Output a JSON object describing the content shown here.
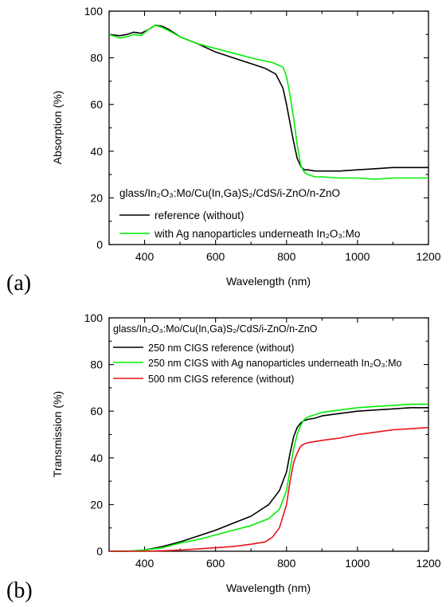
{
  "chart_data": [
    {
      "type": "line",
      "panel_label": "(a)",
      "xlabel": "Wavelength (nm)",
      "ylabel": "Absorption (%)",
      "xlim": [
        300,
        1200
      ],
      "ylim": [
        0,
        100
      ],
      "xticks": [
        "400",
        "600",
        "800",
        "1000",
        "1200"
      ],
      "yticks": [
        "0",
        "20",
        "40",
        "60",
        "80",
        "100"
      ],
      "legend_title": "glass/In₂O₃:Mo/Cu(In,Ga)S₂/CdS/i-ZnO/n-ZnO",
      "legend_position": "bottom-left",
      "series": [
        {
          "name": "reference (without)",
          "color": "#000000",
          "x": [
            300,
            330,
            350,
            370,
            390,
            410,
            430,
            450,
            470,
            500,
            550,
            600,
            650,
            700,
            740,
            770,
            790,
            800,
            810,
            820,
            830,
            840,
            850,
            860,
            880,
            900,
            950,
            1000,
            1050,
            1100,
            1150,
            1200
          ],
          "y": [
            90,
            89.5,
            90,
            91,
            90.5,
            92,
            94,
            93.5,
            92,
            89,
            86,
            82.5,
            80,
            77.5,
            75.5,
            73,
            67,
            60,
            52,
            44,
            37,
            33.5,
            32,
            32,
            31.5,
            31.5,
            31.5,
            32,
            32.5,
            33,
            33,
            33
          ]
        },
        {
          "name": "with Ag nanoparticles underneath In₂O₃:Mo",
          "color": "#00ee00",
          "x": [
            300,
            330,
            350,
            370,
            390,
            410,
            430,
            450,
            470,
            500,
            550,
            600,
            650,
            700,
            760,
            790,
            800,
            810,
            820,
            830,
            840,
            850,
            860,
            880,
            900,
            950,
            1000,
            1050,
            1100,
            1150,
            1200
          ],
          "y": [
            90,
            88.5,
            89,
            90,
            89.5,
            92,
            94,
            93,
            91.5,
            89,
            86,
            84,
            82,
            80,
            78,
            76,
            72,
            64,
            54,
            43,
            34,
            31,
            30,
            29,
            29,
            28.5,
            28.5,
            28,
            28.5,
            28.5,
            28.5
          ]
        }
      ]
    },
    {
      "type": "line",
      "panel_label": "(b)",
      "xlabel": "Wavelength (nm)",
      "ylabel": "Transmission (%)",
      "xlim": [
        300,
        1200
      ],
      "ylim": [
        0,
        100
      ],
      "xticks": [
        "400",
        "600",
        "800",
        "1000",
        "1200"
      ],
      "yticks": [
        "0",
        "20",
        "40",
        "60",
        "80",
        "100"
      ],
      "legend_title": "glass/In₂O₃:Mo/Cu(In,Ga)S₂/CdS/i-ZnO/n-ZnO",
      "legend_position": "top-left",
      "series": [
        {
          "name": "250 nm CIGS reference (without)",
          "color": "#000000",
          "x": [
            300,
            350,
            400,
            450,
            500,
            550,
            600,
            650,
            700,
            750,
            780,
            800,
            810,
            820,
            830,
            840,
            850,
            860,
            880,
            900,
            950,
            1000,
            1050,
            1100,
            1150,
            1200
          ],
          "y": [
            0,
            0,
            0.5,
            2,
            4,
            6.5,
            9,
            12,
            15,
            20,
            26,
            34,
            42,
            49,
            53,
            55,
            56,
            56.5,
            57,
            58,
            59,
            60,
            60.5,
            61,
            61.5,
            61.5
          ]
        },
        {
          "name": "250 nm CIGS with Ag nanoparticles underneath In₂O₃:Mo",
          "color": "#00ee00",
          "x": [
            300,
            350,
            400,
            450,
            500,
            550,
            600,
            650,
            700,
            750,
            780,
            800,
            810,
            820,
            830,
            840,
            850,
            860,
            880,
            900,
            950,
            1000,
            1050,
            1100,
            1150,
            1200
          ],
          "y": [
            0,
            0,
            0.5,
            1.5,
            3.5,
            5,
            7,
            9,
            11,
            14,
            18,
            26,
            35,
            44,
            50,
            54,
            56.5,
            57.5,
            58.5,
            59.5,
            60.5,
            61.5,
            62,
            62.5,
            63,
            63
          ]
        },
        {
          "name": "500 nm CIGS reference (without)",
          "color": "#e8141b",
          "x": [
            300,
            400,
            450,
            500,
            550,
            600,
            650,
            700,
            740,
            760,
            780,
            800,
            810,
            820,
            830,
            840,
            850,
            860,
            880,
            900,
            950,
            1000,
            1050,
            1100,
            1150,
            1200
          ],
          "y": [
            0,
            0,
            0.2,
            0.5,
            1,
            1.5,
            2,
            3,
            4,
            6,
            10,
            20,
            30,
            38,
            42,
            45,
            46,
            46.5,
            47,
            47.5,
            48.5,
            50,
            51,
            52,
            52.5,
            53
          ]
        }
      ]
    }
  ]
}
